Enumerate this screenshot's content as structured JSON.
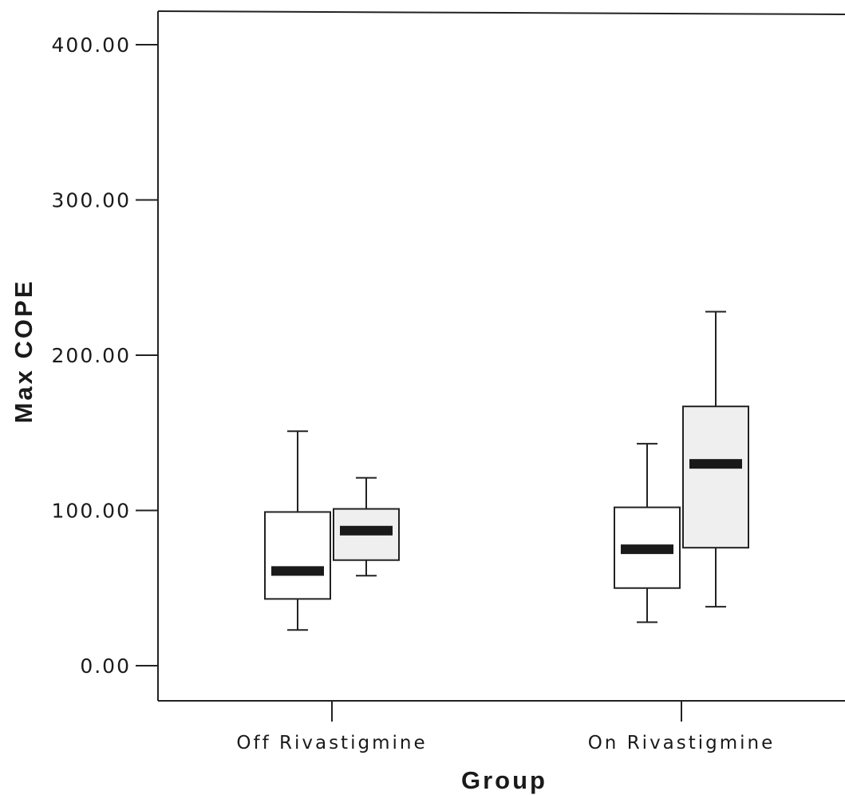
{
  "chart_data": {
    "type": "boxplot",
    "xlabel": "Group",
    "ylabel": "Max COPE",
    "categories": [
      "Off Rivastigmine",
      "On Rivastigmine"
    ],
    "ylim": [
      0,
      400
    ],
    "yticks": [
      0,
      100,
      200,
      300,
      400
    ],
    "ytick_labels": [
      "0.00",
      "100.00",
      "200.00",
      "300.00",
      "400.00"
    ],
    "series": [
      {
        "fill": "#ffffff",
        "boxes": [
          {
            "category": "Off Rivastigmine",
            "min": 23,
            "q1": 43,
            "median": 61,
            "q3": 99,
            "max": 151
          },
          {
            "category": "On Rivastigmine",
            "min": 28,
            "q1": 50,
            "median": 75,
            "q3": 102,
            "max": 143
          }
        ]
      },
      {
        "fill": "#efefef",
        "boxes": [
          {
            "category": "Off Rivastigmine",
            "min": 58,
            "q1": 68,
            "median": 87,
            "q3": 101,
            "max": 121
          },
          {
            "category": "On Rivastigmine",
            "min": 38,
            "q1": 76,
            "median": 130,
            "q3": 167,
            "max": 228
          }
        ]
      }
    ]
  }
}
